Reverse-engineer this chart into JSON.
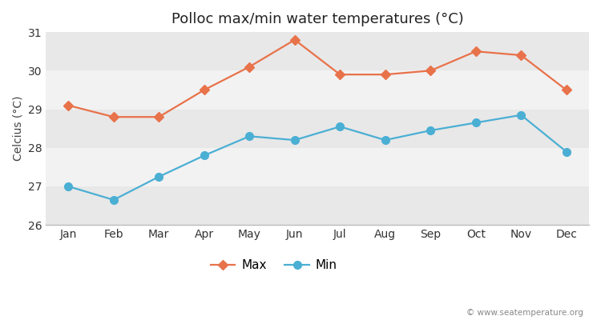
{
  "title": "Polloc max/min water temperatures (°C)",
  "ylabel": "Celcius (°C)",
  "months": [
    "Jan",
    "Feb",
    "Mar",
    "Apr",
    "May",
    "Jun",
    "Jul",
    "Aug",
    "Sep",
    "Oct",
    "Nov",
    "Dec"
  ],
  "max_values": [
    29.1,
    28.8,
    28.8,
    29.5,
    30.1,
    30.8,
    29.9,
    29.9,
    30.0,
    30.5,
    30.4,
    29.5
  ],
  "min_values": [
    27.0,
    26.65,
    27.25,
    27.8,
    28.3,
    28.2,
    28.55,
    28.2,
    28.45,
    28.65,
    28.85,
    27.9
  ],
  "max_color": "#e8724a",
  "min_color": "#4bafd4",
  "bg_color": "#ffffff",
  "plot_bg_light": "#f2f2f2",
  "plot_bg_dark": "#e8e8e8",
  "band_ranges": [
    [
      26,
      27
    ],
    [
      27,
      28
    ],
    [
      28,
      29
    ],
    [
      29,
      30
    ],
    [
      30,
      31
    ]
  ],
  "band_colors": [
    "#e8e8e8",
    "#f2f2f2",
    "#e8e8e8",
    "#f2f2f2",
    "#e8e8e8"
  ],
  "ylim": [
    26,
    31
  ],
  "yticks": [
    26,
    27,
    28,
    29,
    30,
    31
  ],
  "watermark": "© www.seatemperature.org",
  "title_fontsize": 13,
  "label_fontsize": 10,
  "tick_fontsize": 10,
  "legend_fontsize": 11,
  "line_width": 1.6,
  "max_marker": "D",
  "min_marker": "o",
  "max_marker_size": 6,
  "min_marker_size": 7
}
